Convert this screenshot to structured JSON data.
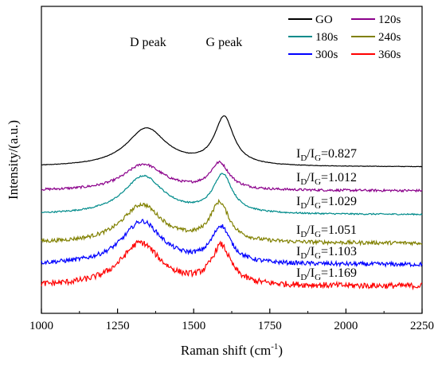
{
  "chart_data": {
    "type": "line",
    "xlabel": "Raman shift (cm",
    "xlabel_sup": "-1",
    "xlabel_close": ")",
    "ylabel": "Intensity/(a.u.)",
    "xlim": [
      1000,
      2250
    ],
    "x_ticks": [
      1000,
      1250,
      1500,
      1750,
      2000,
      2250
    ],
    "y_ticks_shown": false,
    "grid": false,
    "legend_position": "top-right",
    "annotations": [
      {
        "text": "D peak",
        "x": 1350
      },
      {
        "text": "G peak",
        "x": 1600
      }
    ],
    "ratio_label_prefix": "I",
    "ratio_label_sub_d": "D",
    "ratio_label_slash": "/I",
    "ratio_label_sub_g": "G",
    "series": [
      {
        "name": "GO",
        "color": "#000000",
        "ratio": "=0.827",
        "offset": 5.0,
        "d_height": 1.6,
        "g_height": 2.0,
        "g_pos": 1600,
        "d_pos": 1345,
        "noise": 0.02
      },
      {
        "name": "120s",
        "color": "#8b008b",
        "ratio": "=1.012",
        "offset": 4.0,
        "d_height": 1.1,
        "g_height": 1.1,
        "g_pos": 1585,
        "d_pos": 1335,
        "noise": 0.1
      },
      {
        "name": "180s",
        "color": "#008b8b",
        "ratio": "=1.029",
        "offset": 3.0,
        "d_height": 1.6,
        "g_height": 1.6,
        "g_pos": 1595,
        "d_pos": 1335,
        "noise": 0.06
      },
      {
        "name": "240s",
        "color": "#808000",
        "ratio": "=1.051",
        "offset": 1.8,
        "d_height": 1.6,
        "g_height": 1.6,
        "g_pos": 1585,
        "d_pos": 1330,
        "noise": 0.16
      },
      {
        "name": "300s",
        "color": "#0000ff",
        "ratio": "=1.103",
        "offset": 0.9,
        "d_height": 1.8,
        "g_height": 1.5,
        "g_pos": 1590,
        "d_pos": 1330,
        "noise": 0.18
      },
      {
        "name": "360s",
        "color": "#ff0000",
        "ratio": "=1.169",
        "offset": 0.0,
        "d_height": 1.8,
        "g_height": 1.6,
        "g_pos": 1590,
        "d_pos": 1325,
        "noise": 0.25
      }
    ]
  }
}
